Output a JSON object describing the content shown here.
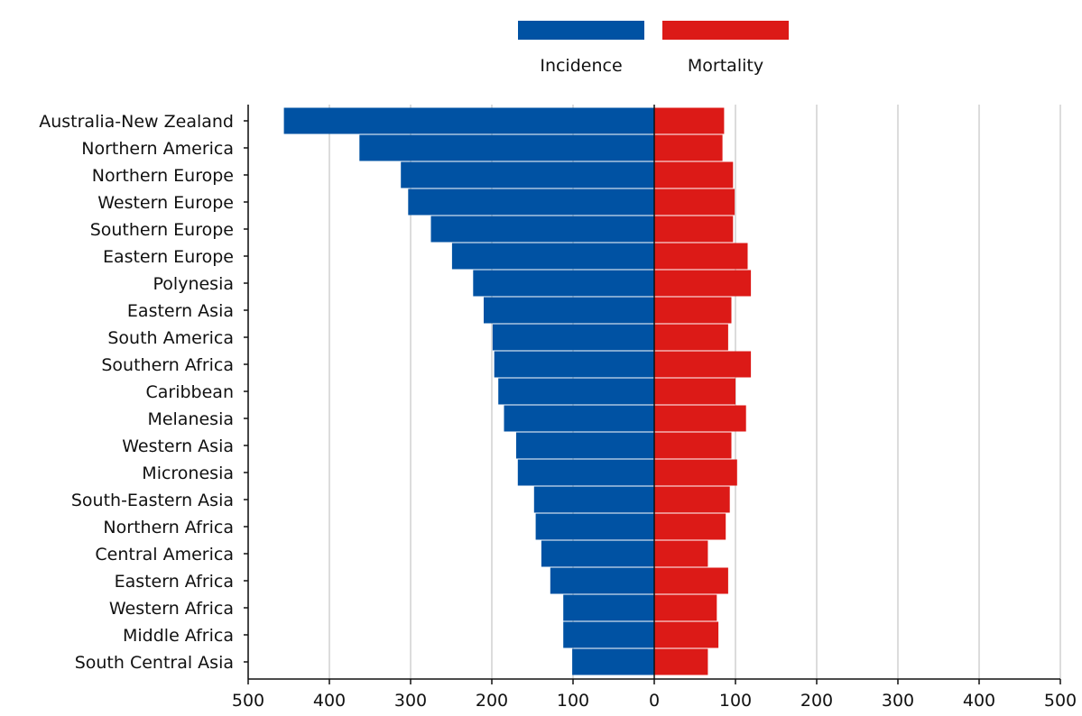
{
  "chart_data": {
    "type": "bar",
    "orientation": "horizontal-diverging",
    "categories": [
      "Australia-New Zealand",
      "Northern America",
      "Northern Europe",
      "Western Europe",
      "Southern Europe",
      "Eastern Europe",
      "Polynesia",
      "Eastern Asia",
      "South America",
      "Southern Africa",
      "Caribbean",
      "Melanesia",
      "Western Asia",
      "Micronesia",
      "South-Eastern Asia",
      "Northern Africa",
      "Central America",
      "Eastern Africa",
      "Western Africa",
      "Middle Africa",
      "South Central Asia"
    ],
    "series": [
      {
        "name": "Incidence",
        "color": "#0052a3",
        "direction": "left",
        "values": [
          456,
          363,
          312,
          303,
          275,
          249,
          223,
          210,
          199,
          197,
          192,
          185,
          170,
          168,
          148,
          146,
          139,
          128,
          112,
          112,
          101
        ]
      },
      {
        "name": "Mortality",
        "color": "#dc1a17",
        "direction": "right",
        "values": [
          86,
          84,
          97,
          99,
          97,
          115,
          119,
          95,
          91,
          119,
          100,
          113,
          95,
          102,
          93,
          88,
          66,
          91,
          77,
          79,
          66
        ]
      }
    ],
    "xlim": [
      -500,
      500
    ],
    "x_ticks": [
      -500,
      -400,
      -300,
      -200,
      -100,
      0,
      100,
      200,
      300,
      400,
      500
    ],
    "x_tick_labels": [
      "500",
      "400",
      "300",
      "200",
      "100",
      "0",
      "100",
      "200",
      "300",
      "400",
      "500"
    ],
    "grid": "vertical",
    "legend": "top-center"
  }
}
